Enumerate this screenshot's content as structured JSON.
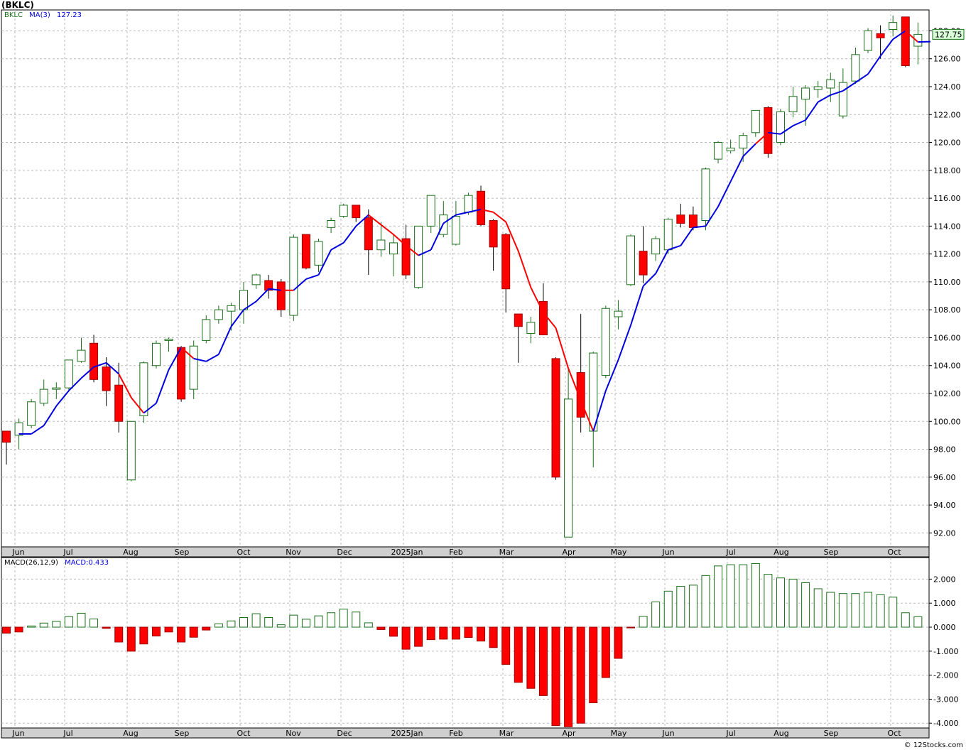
{
  "title": "(BKLC)",
  "legend": {
    "symbol": "BKLC",
    "ma_label": "MA(3)",
    "ma_value": "127.23",
    "macd_label": "MACD(26,12,9)",
    "macd_value": "MACD:0.433"
  },
  "price_tag": "127.75",
  "copyright": "© 12Stocks.com",
  "colors": {
    "up": "#1a6e1a",
    "down": "#ff0000",
    "ma_up": "#0000e0",
    "ma_down": "#ff0000",
    "grid": "#bbbbbb",
    "axisbar": "#cfcfcf"
  },
  "chart_data": [
    {
      "type": "candlestick",
      "name": "price",
      "ylim": [
        91,
        129.5
      ],
      "yticks": [
        "92.00",
        "94.00",
        "96.00",
        "98.00",
        "100.00",
        "102.00",
        "104.00",
        "106.00",
        "108.00",
        "110.00",
        "112.00",
        "114.00",
        "116.00",
        "118.00",
        "120.00",
        "122.00",
        "124.00",
        "126.00",
        "128.00"
      ],
      "month_labels": [
        "Jun",
        "Jul",
        "Aug",
        "Sep",
        "Oct",
        "Nov",
        "Dec",
        "2025Jan",
        "Feb",
        "Mar",
        "Apr",
        "May",
        "Jun",
        "Jul",
        "Aug",
        "Sep",
        "Oct"
      ],
      "candles": [
        {
          "o": 99.3,
          "h": 99.3,
          "l": 96.9,
          "c": 98.5
        },
        {
          "o": 99.0,
          "h": 100.2,
          "l": 98.0,
          "c": 99.9
        },
        {
          "o": 99.7,
          "h": 101.6,
          "l": 99.5,
          "c": 101.4
        },
        {
          "o": 101.3,
          "h": 103.0,
          "l": 101.1,
          "c": 102.3
        },
        {
          "o": 102.3,
          "h": 102.8,
          "l": 101.6,
          "c": 102.4
        },
        {
          "o": 102.4,
          "h": 104.4,
          "l": 102.2,
          "c": 104.4
        },
        {
          "o": 104.3,
          "h": 106.0,
          "l": 104.2,
          "c": 105.1
        },
        {
          "o": 105.6,
          "h": 106.2,
          "l": 102.8,
          "c": 103.0
        },
        {
          "o": 103.9,
          "h": 104.6,
          "l": 101.1,
          "c": 102.2
        },
        {
          "o": 102.6,
          "h": 104.2,
          "l": 99.2,
          "c": 100.0
        },
        {
          "o": 95.8,
          "h": 100.0,
          "l": 95.7,
          "c": 100.0
        },
        {
          "o": 100.4,
          "h": 104.3,
          "l": 99.9,
          "c": 104.2
        },
        {
          "o": 104.0,
          "h": 105.8,
          "l": 103.8,
          "c": 105.6
        },
        {
          "o": 105.8,
          "h": 106.0,
          "l": 105.0,
          "c": 105.9
        },
        {
          "o": 105.3,
          "h": 105.4,
          "l": 101.4,
          "c": 101.6
        },
        {
          "o": 102.3,
          "h": 105.8,
          "l": 101.6,
          "c": 105.4
        },
        {
          "o": 105.8,
          "h": 107.6,
          "l": 105.6,
          "c": 107.3
        },
        {
          "o": 107.3,
          "h": 108.3,
          "l": 107.0,
          "c": 108.0
        },
        {
          "o": 107.9,
          "h": 108.5,
          "l": 106.5,
          "c": 108.3
        },
        {
          "o": 108.0,
          "h": 110.0,
          "l": 107.0,
          "c": 109.4
        },
        {
          "o": 109.8,
          "h": 110.6,
          "l": 109.5,
          "c": 110.5
        },
        {
          "o": 110.1,
          "h": 110.5,
          "l": 108.8,
          "c": 109.4
        },
        {
          "o": 110.0,
          "h": 110.2,
          "l": 107.5,
          "c": 108.0
        },
        {
          "o": 107.6,
          "h": 113.4,
          "l": 107.2,
          "c": 113.2
        },
        {
          "o": 113.4,
          "h": 113.4,
          "l": 110.9,
          "c": 111.0
        },
        {
          "o": 111.2,
          "h": 113.1,
          "l": 110.7,
          "c": 112.9
        },
        {
          "o": 113.9,
          "h": 114.6,
          "l": 113.5,
          "c": 114.4
        },
        {
          "o": 114.7,
          "h": 115.6,
          "l": 114.6,
          "c": 115.5
        },
        {
          "o": 115.5,
          "h": 115.5,
          "l": 114.3,
          "c": 114.6
        },
        {
          "o": 114.6,
          "h": 115.2,
          "l": 110.5,
          "c": 112.3
        },
        {
          "o": 112.3,
          "h": 114.3,
          "l": 111.8,
          "c": 113.0
        },
        {
          "o": 112.0,
          "h": 113.4,
          "l": 110.4,
          "c": 112.8
        },
        {
          "o": 113.1,
          "h": 114.1,
          "l": 110.2,
          "c": 110.5
        },
        {
          "o": 109.6,
          "h": 114.0,
          "l": 109.5,
          "c": 114.0
        },
        {
          "o": 114.0,
          "h": 116.2,
          "l": 113.5,
          "c": 116.2
        },
        {
          "o": 113.4,
          "h": 115.8,
          "l": 113.2,
          "c": 114.8
        },
        {
          "o": 112.7,
          "h": 115.8,
          "l": 112.6,
          "c": 114.7
        },
        {
          "o": 115.0,
          "h": 116.4,
          "l": 114.8,
          "c": 116.2
        },
        {
          "o": 116.5,
          "h": 116.9,
          "l": 114.0,
          "c": 114.1
        },
        {
          "o": 114.4,
          "h": 114.5,
          "l": 110.8,
          "c": 112.5
        },
        {
          "o": 113.4,
          "h": 113.5,
          "l": 107.8,
          "c": 109.5
        },
        {
          "o": 107.7,
          "h": 107.7,
          "l": 104.2,
          "c": 106.8
        },
        {
          "o": 106.3,
          "h": 107.5,
          "l": 105.6,
          "c": 107.1
        },
        {
          "o": 108.6,
          "h": 109.9,
          "l": 106.5,
          "c": 106.2
        },
        {
          "o": 104.5,
          "h": 104.6,
          "l": 95.8,
          "c": 96.0
        },
        {
          "o": 91.7,
          "h": 103.8,
          "l": 91.7,
          "c": 101.6
        },
        {
          "o": 103.5,
          "h": 107.7,
          "l": 99.2,
          "c": 100.3
        },
        {
          "o": 99.3,
          "h": 105.0,
          "l": 96.7,
          "c": 104.9
        },
        {
          "o": 103.3,
          "h": 108.3,
          "l": 103.1,
          "c": 108.1
        },
        {
          "o": 107.5,
          "h": 108.7,
          "l": 106.6,
          "c": 107.9
        },
        {
          "o": 109.8,
          "h": 113.4,
          "l": 109.7,
          "c": 113.3
        },
        {
          "o": 112.2,
          "h": 114.0,
          "l": 109.9,
          "c": 110.5
        },
        {
          "o": 112.0,
          "h": 113.3,
          "l": 111.5,
          "c": 113.1
        },
        {
          "o": 112.3,
          "h": 114.6,
          "l": 112.0,
          "c": 114.5
        },
        {
          "o": 114.8,
          "h": 115.6,
          "l": 113.9,
          "c": 114.2
        },
        {
          "o": 114.8,
          "h": 115.4,
          "l": 113.7,
          "c": 113.9
        },
        {
          "o": 114.4,
          "h": 118.2,
          "l": 113.7,
          "c": 118.1
        },
        {
          "o": 118.8,
          "h": 120.1,
          "l": 118.5,
          "c": 120.0
        },
        {
          "o": 119.4,
          "h": 120.2,
          "l": 119.2,
          "c": 119.6
        },
        {
          "o": 119.6,
          "h": 120.7,
          "l": 118.6,
          "c": 120.5
        },
        {
          "o": 120.7,
          "h": 122.3,
          "l": 120.4,
          "c": 122.3
        },
        {
          "o": 122.5,
          "h": 122.6,
          "l": 118.9,
          "c": 119.2
        },
        {
          "o": 120.0,
          "h": 122.4,
          "l": 119.8,
          "c": 122.2
        },
        {
          "o": 122.2,
          "h": 124.0,
          "l": 121.8,
          "c": 123.3
        },
        {
          "o": 123.1,
          "h": 124.1,
          "l": 121.2,
          "c": 123.9
        },
        {
          "o": 123.8,
          "h": 124.4,
          "l": 123.2,
          "c": 124.0
        },
        {
          "o": 123.9,
          "h": 125.0,
          "l": 122.9,
          "c": 124.5
        },
        {
          "o": 121.9,
          "h": 125.3,
          "l": 121.7,
          "c": 124.3
        },
        {
          "o": 124.4,
          "h": 126.8,
          "l": 124.2,
          "c": 126.3
        },
        {
          "o": 126.6,
          "h": 128.2,
          "l": 126.4,
          "c": 128.0
        },
        {
          "o": 127.8,
          "h": 128.4,
          "l": 126.0,
          "c": 127.5
        },
        {
          "o": 128.1,
          "h": 129.1,
          "l": 127.6,
          "c": 128.6
        },
        {
          "o": 129.0,
          "h": 129.0,
          "l": 125.4,
          "c": 125.5
        },
        {
          "o": 126.9,
          "h": 128.6,
          "l": 125.6,
          "c": 127.75
        }
      ],
      "ma": [
        99.1,
        99.1,
        99.7,
        101.1,
        102.2,
        103.1,
        103.9,
        104.2,
        103.4,
        101.7,
        100.6,
        101.3,
        103.7,
        105.3,
        104.5,
        104.3,
        104.8,
        106.8,
        108.0,
        108.6,
        109.5,
        109.4,
        109.4,
        110.2,
        110.5,
        112.3,
        112.8,
        114.0,
        114.8,
        114.1,
        113.4,
        112.6,
        111.9,
        112.3,
        114.2,
        114.8,
        115.0,
        115.2,
        115.0,
        114.3,
        112.2,
        109.6,
        107.8,
        106.7,
        103.8,
        101.5,
        99.3,
        102.2,
        104.4,
        106.9,
        109.7,
        110.6,
        112.3,
        112.6,
        113.9,
        114.0,
        115.4,
        117.2,
        119.0,
        119.9,
        120.7,
        120.6,
        121.2,
        121.6,
        122.9,
        123.4,
        123.7,
        124.3,
        124.9,
        126.2,
        127.4,
        128.0,
        127.2,
        127.23
      ],
      "ma_color_segments": [
        "up",
        "up",
        "up",
        "up",
        "up",
        "up",
        "up",
        "up",
        "down",
        "down",
        "up",
        "up",
        "up",
        "down",
        "up",
        "up",
        "up",
        "up",
        "up",
        "up",
        "up",
        "down",
        "up",
        "up",
        "up",
        "up",
        "up",
        "up",
        "down",
        "down",
        "down",
        "down",
        "up",
        "up",
        "up",
        "up",
        "up",
        "down",
        "down",
        "down",
        "down",
        "down",
        "down",
        "down",
        "down",
        "down",
        "up",
        "up",
        "up",
        "up",
        "up",
        "up",
        "up",
        "up",
        "up",
        "up",
        "up",
        "up",
        "up",
        "down",
        "up",
        "up",
        "up",
        "up",
        "up",
        "up",
        "up",
        "up",
        "up",
        "up",
        "up",
        "down",
        "up"
      ]
    },
    {
      "type": "bar",
      "name": "MACD",
      "ylim": [
        -4.2,
        2.9
      ],
      "yticks": [
        "2.000",
        "1.000",
        "0.000",
        "-1.000",
        "-2.000",
        "-3.000",
        "-4.000"
      ],
      "month_labels": [
        "Jun",
        "Jul",
        "Aug",
        "Sep",
        "Oct",
        "Nov",
        "Dec",
        "2025Jan",
        "Feb",
        "Mar",
        "Apr",
        "May",
        "Jun",
        "Jul",
        "Aug",
        "Sep",
        "Oct"
      ],
      "values": [
        -0.25,
        -0.2,
        0.05,
        0.17,
        0.24,
        0.44,
        0.58,
        0.34,
        -0.05,
        -0.62,
        -1.0,
        -0.7,
        -0.37,
        -0.2,
        -0.62,
        -0.42,
        -0.12,
        0.14,
        0.26,
        0.4,
        0.56,
        0.4,
        0.1,
        0.5,
        0.33,
        0.47,
        0.6,
        0.75,
        0.63,
        0.18,
        -0.1,
        -0.38,
        -0.92,
        -0.8,
        -0.52,
        -0.5,
        -0.5,
        -0.43,
        -0.58,
        -0.85,
        -1.55,
        -2.3,
        -2.55,
        -2.85,
        -4.1,
        -4.15,
        -4.0,
        -3.15,
        -2.1,
        -1.3,
        -0.03,
        0.45,
        1.05,
        1.5,
        1.7,
        1.75,
        2.15,
        2.55,
        2.6,
        2.6,
        2.65,
        2.2,
        2.05,
        2.0,
        1.85,
        1.6,
        1.45,
        1.4,
        1.4,
        1.45,
        1.35,
        1.25,
        0.6,
        0.433
      ]
    }
  ]
}
